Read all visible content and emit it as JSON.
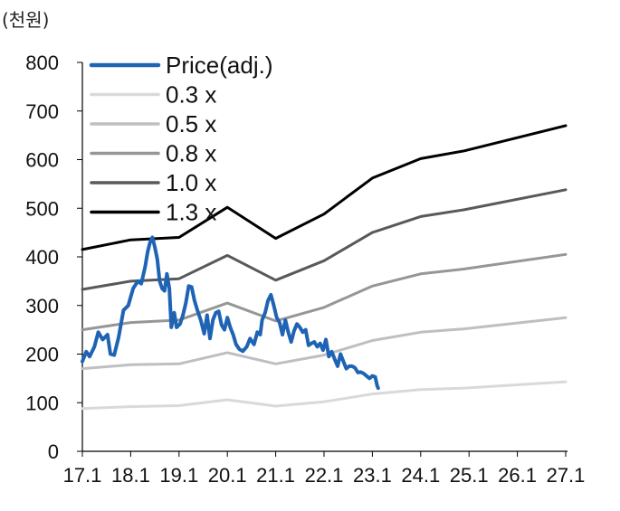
{
  "chart_data": {
    "type": "line",
    "ylabel": "(천원)",
    "ylim": [
      0,
      800
    ],
    "yticks": [
      "0",
      "100",
      "200",
      "300",
      "400",
      "500",
      "600",
      "700",
      "800"
    ],
    "x_categories": [
      "17.1",
      "18.1",
      "19.1",
      "20.1",
      "21.1",
      "22.1",
      "23.1",
      "24.1",
      "25.1",
      "26.1",
      "27.1"
    ],
    "legend_position": "top-left",
    "grid": false,
    "series": [
      {
        "name": "Price(adj.)",
        "color": "#1f64b4",
        "width": 4,
        "points": [
          [
            0.0,
            185
          ],
          [
            0.08,
            205
          ],
          [
            0.15,
            195
          ],
          [
            0.25,
            215
          ],
          [
            0.33,
            245
          ],
          [
            0.42,
            230
          ],
          [
            0.52,
            240
          ],
          [
            0.58,
            200
          ],
          [
            0.66,
            198
          ],
          [
            0.75,
            235
          ],
          [
            0.85,
            290
          ],
          [
            0.95,
            300
          ],
          [
            1.05,
            335
          ],
          [
            1.15,
            350
          ],
          [
            1.22,
            345
          ],
          [
            1.3,
            380
          ],
          [
            1.35,
            410
          ],
          [
            1.4,
            430
          ],
          [
            1.45,
            440
          ],
          [
            1.5,
            420
          ],
          [
            1.55,
            395
          ],
          [
            1.6,
            350
          ],
          [
            1.65,
            335
          ],
          [
            1.7,
            330
          ],
          [
            1.75,
            365
          ],
          [
            1.8,
            335
          ],
          [
            1.84,
            255
          ],
          [
            1.9,
            285
          ],
          [
            1.95,
            255
          ],
          [
            2.02,
            262
          ],
          [
            2.08,
            280
          ],
          [
            2.14,
            305
          ],
          [
            2.2,
            340
          ],
          [
            2.26,
            338
          ],
          [
            2.32,
            310
          ],
          [
            2.38,
            290
          ],
          [
            2.45,
            270
          ],
          [
            2.52,
            242
          ],
          [
            2.58,
            280
          ],
          [
            2.64,
            232
          ],
          [
            2.7,
            270
          ],
          [
            2.76,
            285
          ],
          [
            2.82,
            288
          ],
          [
            2.88,
            260
          ],
          [
            2.94,
            250
          ],
          [
            3.0,
            275
          ],
          [
            3.06,
            255
          ],
          [
            3.12,
            240
          ],
          [
            3.18,
            220
          ],
          [
            3.25,
            210
          ],
          [
            3.32,
            206
          ],
          [
            3.4,
            215
          ],
          [
            3.47,
            232
          ],
          [
            3.55,
            220
          ],
          [
            3.62,
            245
          ],
          [
            3.68,
            240
          ],
          [
            3.72,
            270
          ],
          [
            3.78,
            285
          ],
          [
            3.84,
            310
          ],
          [
            3.9,
            322
          ],
          [
            3.96,
            300
          ],
          [
            4.02,
            275
          ],
          [
            4.08,
            265
          ],
          [
            4.14,
            240
          ],
          [
            4.2,
            270
          ],
          [
            4.26,
            245
          ],
          [
            4.32,
            225
          ],
          [
            4.38,
            248
          ],
          [
            4.44,
            262
          ],
          [
            4.5,
            255
          ],
          [
            4.56,
            245
          ],
          [
            4.62,
            250
          ],
          [
            4.68,
            218
          ],
          [
            4.74,
            222
          ],
          [
            4.8,
            225
          ],
          [
            4.86,
            215
          ],
          [
            4.92,
            222
          ],
          [
            4.98,
            208
          ],
          [
            5.04,
            230
          ],
          [
            5.1,
            195
          ],
          [
            5.16,
            205
          ],
          [
            5.22,
            190
          ],
          [
            5.28,
            175
          ],
          [
            5.34,
            200
          ],
          [
            5.4,
            185
          ],
          [
            5.46,
            170
          ],
          [
            5.52,
            175
          ],
          [
            5.58,
            175
          ],
          [
            5.64,
            172
          ],
          [
            5.7,
            162
          ],
          [
            5.76,
            163
          ],
          [
            5.82,
            160
          ],
          [
            5.88,
            155
          ],
          [
            5.94,
            150
          ],
          [
            6.0,
            155
          ],
          [
            6.06,
            153
          ],
          [
            6.1,
            135
          ],
          [
            6.12,
            130
          ]
        ]
      },
      {
        "name": "0.3 x",
        "color": "#d9d9d9",
        "width": 3,
        "points": [
          [
            0.0,
            88
          ],
          [
            1.0,
            92
          ],
          [
            2.0,
            94
          ],
          [
            3.0,
            106
          ],
          [
            4.0,
            93
          ],
          [
            5.0,
            102
          ],
          [
            6.0,
            118
          ],
          [
            7.0,
            127
          ],
          [
            7.9,
            130
          ],
          [
            10.0,
            143
          ]
        ]
      },
      {
        "name": "0.5 x",
        "color": "#bfbfbf",
        "width": 3,
        "points": [
          [
            0.0,
            170
          ],
          [
            1.0,
            178
          ],
          [
            2.0,
            180
          ],
          [
            3.0,
            203
          ],
          [
            4.0,
            180
          ],
          [
            5.0,
            198
          ],
          [
            6.0,
            228
          ],
          [
            7.0,
            245
          ],
          [
            7.9,
            252
          ],
          [
            10.0,
            275
          ]
        ]
      },
      {
        "name": "0.8 x",
        "color": "#969696",
        "width": 3,
        "points": [
          [
            0.0,
            250
          ],
          [
            1.0,
            265
          ],
          [
            2.0,
            270
          ],
          [
            3.0,
            305
          ],
          [
            4.0,
            268
          ],
          [
            5.0,
            296
          ],
          [
            6.0,
            340
          ],
          [
            7.0,
            365
          ],
          [
            7.9,
            375
          ],
          [
            10.0,
            405
          ]
        ]
      },
      {
        "name": "1.0 x",
        "color": "#595959",
        "width": 3,
        "points": [
          [
            0.0,
            333
          ],
          [
            1.0,
            350
          ],
          [
            2.0,
            355
          ],
          [
            3.0,
            403
          ],
          [
            4.0,
            352
          ],
          [
            5.0,
            392
          ],
          [
            6.0,
            450
          ],
          [
            7.0,
            483
          ],
          [
            7.9,
            497
          ],
          [
            10.0,
            538
          ]
        ]
      },
      {
        "name": "1.3 x",
        "color": "#000000",
        "width": 3,
        "points": [
          [
            0.0,
            415
          ],
          [
            1.0,
            435
          ],
          [
            2.0,
            440
          ],
          [
            3.0,
            502
          ],
          [
            4.0,
            438
          ],
          [
            5.0,
            488
          ],
          [
            6.0,
            562
          ],
          [
            7.0,
            602
          ],
          [
            7.9,
            618
          ],
          [
            10.0,
            670
          ]
        ]
      }
    ]
  }
}
